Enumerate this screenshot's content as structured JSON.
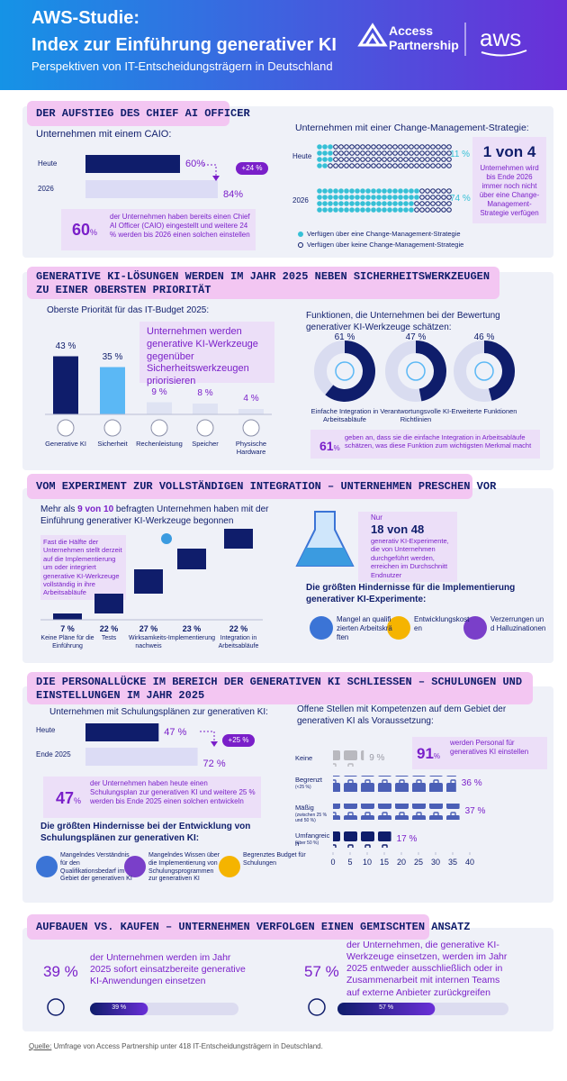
{
  "header": {
    "title_1": "AWS-Studie:",
    "title_2": "Index zur Einführung generativer KI",
    "subtitle": "Perspektiven von IT-Entscheidungsträgern in Deutschland",
    "logo_1": "Access",
    "logo_2": "Partnership",
    "logo_aws": "aws"
  },
  "s1": {
    "heading": "DER AUFSTIEG DES CHIEF AI OFFICER",
    "caio": {
      "title": "Unternehmen mit einem CAIO:",
      "categories": [
        "Heute",
        "2026"
      ],
      "values": [
        60,
        84
      ],
      "value_labels": [
        "60%",
        "84%"
      ],
      "delta": "+24 %"
    },
    "callout": {
      "number": 60,
      "unit": "%",
      "text": "der Unternehmen haben bereits einen Chief AI Officer (CAIO) eingestellt und weitere 24 % werden bis 2026 einen solchen einstellen"
    },
    "change": {
      "title": "Unternehmen mit einer Change-Management-Strategie:",
      "categories": [
        "Heute",
        "2026"
      ],
      "values": [
        11,
        74
      ],
      "value_labels": [
        "11 %",
        "74 %"
      ],
      "legend": [
        "Verfügen über eine Change-Management-Strategie",
        "Verfügen über keine Change-Management-Strategie"
      ]
    },
    "stat": {
      "big": "1 von 4",
      "text": "Unternehmen wird bis Ende 2026 immer noch nicht über eine Change-Management-Strategie verfügen"
    }
  },
  "s2": {
    "heading": "GENERATIVE KI-LÖSUNGEN WERDEN IM JAHR 2025 NEBEN SICHERHEITSWERKZEUGEN ZU EINER OBERSTEN PRIORITÄT",
    "priority": {
      "title": "Oberste Priorität für das IT-Budget 2025:",
      "categories": [
        "Generative KI",
        "Sicherheit",
        "Rechenleistung",
        "Speicher",
        "Physische Hardware"
      ],
      "values": [
        43,
        35,
        9,
        8,
        4
      ],
      "value_labels": [
        "43 %",
        "35 %",
        "9 %",
        "8 %",
        "4 %"
      ],
      "callout": "Unternehmen werden generative KI-Werkzeuge gegenüber Sicherheitswerkzeugen priorisieren"
    },
    "functions": {
      "title": "Funktionen, die Unternehmen bei der Bewertung generativer KI-Werkzeuge schätzen:",
      "categories": [
        "Einfache Integration in Arbeitsabläufe",
        "Verantwortungsvolle KI-Richtlinien",
        "Erweiterte Funktionen"
      ],
      "values": [
        61,
        47,
        46
      ],
      "value_labels": [
        "61 %",
        "47 %",
        "46 %"
      ]
    },
    "note": {
      "number": 61,
      "unit": "%",
      "text": "geben an, dass sie die einfache Integration in Arbeitsabläufe schätzen, was diese Funktion zum wichtigsten Merkmal macht"
    }
  },
  "s3": {
    "heading": "VOM EXPERIMENT ZUR VOLLSTÄNDIGEN INTEGRATION – UNTERNEHMEN PRESCHEN VOR",
    "intro_1": "Mehr als ",
    "intro_bold": "9 von 10",
    "intro_2": " befragten Unternehmen haben mit der Einführung generativer KI-Werkzeuge begonnen",
    "callout": "Fast die Hälfte der Unternehmen stellt derzeit auf die Implementierung um oder integriert generative KI-Werkzeuge vollständig in ihre Arbeitsabläufe",
    "steps": {
      "categories": [
        "Keine Pläne für die Einführung",
        "Tests",
        "Wirksamkeits-nachweis",
        "Implementierung",
        "Integration in Arbeitsabläufe"
      ],
      "values": [
        7,
        22,
        27,
        23,
        22
      ],
      "value_labels": [
        "7 %",
        "22 %",
        "27 %",
        "23 %",
        "22 %"
      ]
    },
    "experiments": {
      "prefix": "Nur",
      "big": "18 von 48",
      "text": "generativ KI-Experimente, die von Unternehmen durchgeführt werden, erreichen im Durchschnitt Endnutzer"
    },
    "hurdles": {
      "title": "Die größten Hindernisse für die Implementierung generativer KI-Experimente:",
      "items": [
        "Mangel an qualifizierten Arbeitskräften",
        "Entwicklungskosten",
        "Verzerrungen und Halluzinationen"
      ]
    }
  },
  "s4": {
    "heading": "DIE PERSONALLÜCKE IM BEREICH DER GENERATIVEN KI SCHLIESSEN – SCHULUNGEN UND EINSTELLUNGEN IM JAHR 2025",
    "training": {
      "title": "Unternehmen mit Schulungsplänen zur generativen KI:",
      "categories": [
        "Heute",
        "Ende 2025"
      ],
      "values": [
        47,
        72
      ],
      "value_labels": [
        "47 %",
        "72 %"
      ],
      "delta": "+25 %"
    },
    "callout": {
      "number": 47,
      "unit": "%",
      "text": "der Unternehmen haben heute einen Schulungsplan zur generativen KI und weitere 25 % werden bis Ende 2025 einen solchen entwickeln"
    },
    "hurdles": {
      "title": "Die größten Hindernisse bei der Entwicklung von Schulungsplänen zur generativen KI:",
      "items": [
        "Mangelndes Verständnis für den Qualifikationsbedarf im Gebiet der generativen KI",
        "Mangelndes Wissen über die Implementierung von Schulungsprogrammen zur generativen KI",
        "Begrenztes Budget für Schulungen"
      ]
    },
    "jobs": {
      "title": "Offene Stellen mit Kompetenzen auf dem Gebiet der generativen KI als Voraussetzung:",
      "rows": [
        {
          "label": "Keine",
          "value": 9,
          "value_label": "9 %"
        },
        {
          "label": "Begrenzt",
          "note": "(<25 %)",
          "value": 36,
          "value_label": "36 %"
        },
        {
          "label": "Mäßig",
          "note": "(zwischen 25 % und 50 %)",
          "value": 37,
          "value_label": "37 %"
        },
        {
          "label": "Umfangreich",
          "note": "(über 50 %)",
          "value": 17,
          "value_label": "17 %"
        }
      ],
      "xlim": [
        0,
        40
      ],
      "xticks": [
        0,
        5,
        10,
        15,
        20,
        25,
        30,
        35,
        40
      ]
    },
    "hire": {
      "number": 91,
      "unit": "%",
      "text": "werden Personal für generatives KI einstellen"
    }
  },
  "s5": {
    "heading": "AUFBAUEN VS. KAUFEN – UNTERNEHMEN VERFOLGEN EINEN GEMISCHTEN ANSATZ",
    "items": [
      {
        "value": 39,
        "value_label": "39 %",
        "text": "der Unternehmen werden im Jahr 2025 sofort einsatzbereite generative KI-Anwendungen einsetzen"
      },
      {
        "value": 57,
        "value_label": "57 %",
        "text": "der Unternehmen, die generative KI-Werkzeuge einsetzen, werden im Jahr 2025 entweder ausschließlich oder in Zusammenarbeit mit internen Teams auf externe Anbieter zurückgreifen"
      }
    ]
  },
  "source": {
    "label": "Quelle:",
    "text": " Umfrage von Access Partnership unter 418 IT-Entscheidungsträgern in Deutschland."
  }
}
